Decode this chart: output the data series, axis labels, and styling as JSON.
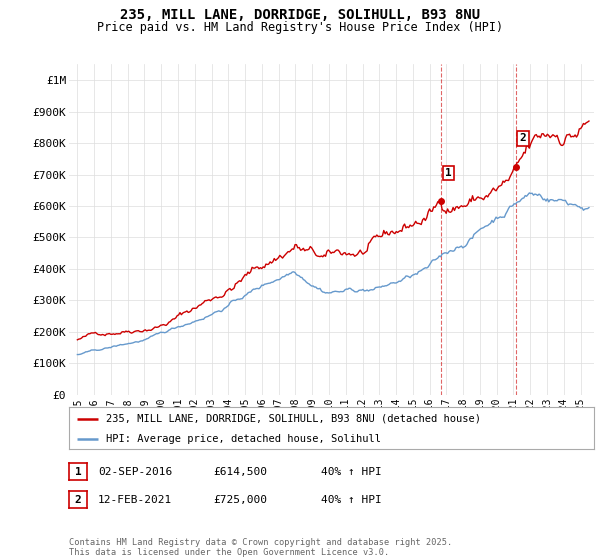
{
  "title_line1": "235, MILL LANE, DORRIDGE, SOLIHULL, B93 8NU",
  "title_line2": "Price paid vs. HM Land Registry's House Price Index (HPI)",
  "ylabel_ticks": [
    "£0",
    "£100K",
    "£200K",
    "£300K",
    "£400K",
    "£500K",
    "£600K",
    "£700K",
    "£800K",
    "£900K",
    "£1M"
  ],
  "ytick_values": [
    0,
    100000,
    200000,
    300000,
    400000,
    500000,
    600000,
    700000,
    800000,
    900000,
    1000000
  ],
  "ylim": [
    0,
    1050000
  ],
  "xlim_start": 1994.5,
  "xlim_end": 2025.8,
  "xticks": [
    1995,
    1996,
    1997,
    1998,
    1999,
    2000,
    2001,
    2002,
    2003,
    2004,
    2005,
    2006,
    2007,
    2008,
    2009,
    2010,
    2011,
    2012,
    2013,
    2014,
    2015,
    2016,
    2017,
    2018,
    2019,
    2020,
    2021,
    2022,
    2023,
    2024,
    2025
  ],
  "red_color": "#cc0000",
  "blue_color": "#6699cc",
  "dashed_color": "#cc0000",
  "sale1_x": 2016.67,
  "sale1_y": 614500,
  "sale2_x": 2021.12,
  "sale2_y": 725000,
  "legend_line1": "235, MILL LANE, DORRIDGE, SOLIHULL, B93 8NU (detached house)",
  "legend_line2": "HPI: Average price, detached house, Solihull",
  "annotation1_label": "1",
  "annotation2_label": "2",
  "table_row1": [
    "1",
    "02-SEP-2016",
    "£614,500",
    "40% ↑ HPI"
  ],
  "table_row2": [
    "2",
    "12-FEB-2021",
    "£725,000",
    "40% ↑ HPI"
  ],
  "footer": "Contains HM Land Registry data © Crown copyright and database right 2025.\nThis data is licensed under the Open Government Licence v3.0.",
  "background_color": "#ffffff",
  "grid_color": "#dddddd"
}
